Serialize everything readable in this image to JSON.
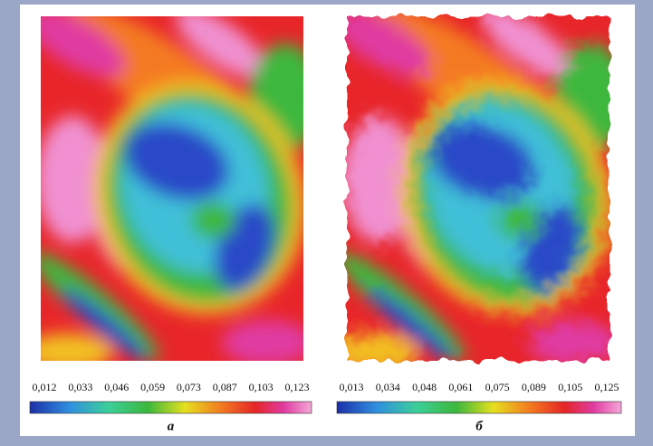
{
  "panels": [
    {
      "colorbar_ticks": [
        "0,012",
        "0,033",
        "0,046",
        "0,059",
        "0,073",
        "0,087",
        "0,103",
        "0,123"
      ],
      "caption": "а"
    },
    {
      "colorbar_ticks": [
        "0,013",
        "0,034",
        "0,048",
        "0,061",
        "0,075",
        "0,089",
        "0,105",
        "0,125"
      ],
      "caption": "б"
    }
  ]
}
